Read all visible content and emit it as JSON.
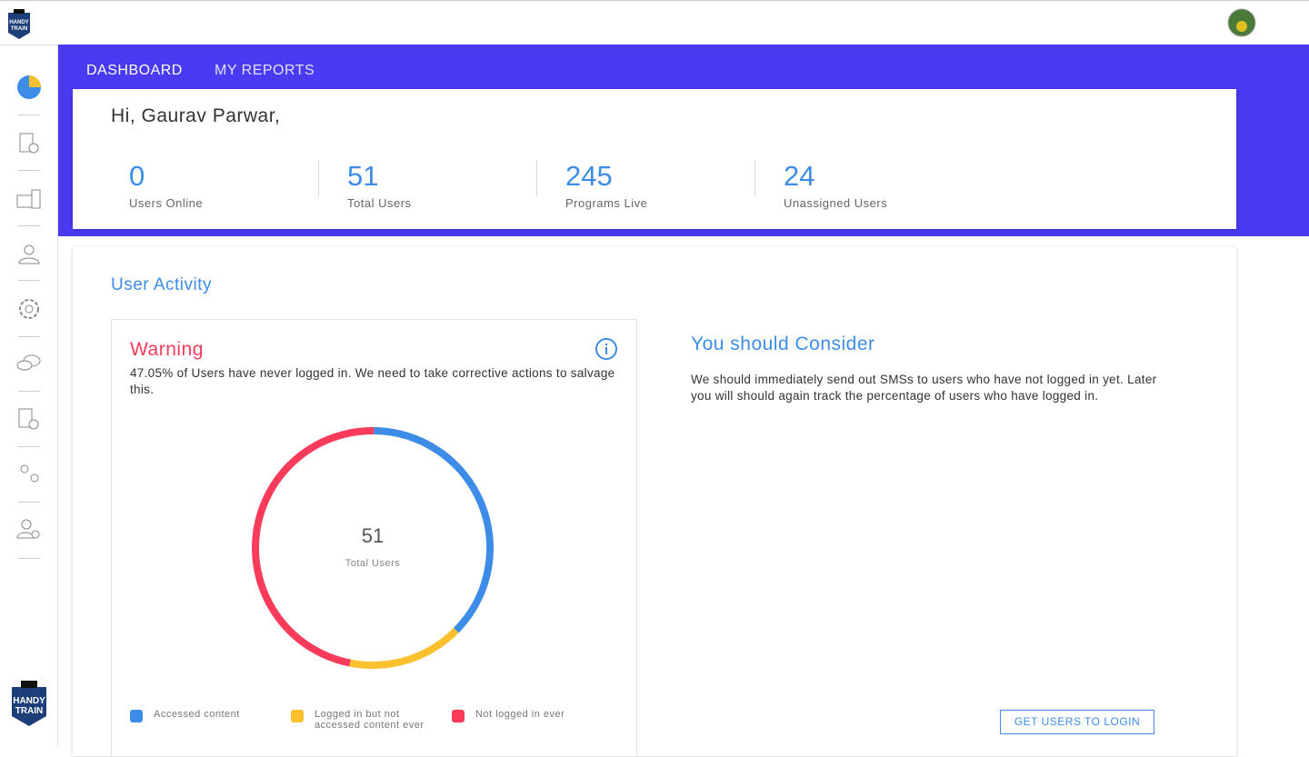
{
  "nav": {
    "items": [
      "DASHBOARD",
      "MY REPORTS"
    ]
  },
  "greeting": "Hi, Gaurav Parwar,",
  "stats": [
    {
      "value": "0",
      "label": "Users Online"
    },
    {
      "value": "51",
      "label": "Total Users"
    },
    {
      "value": "245",
      "label": "Programs Live"
    },
    {
      "value": "24",
      "label": "Unassigned Users"
    }
  ],
  "activity": {
    "title": "User Activity",
    "warning_title": "Warning",
    "warning_text": "47.05% of Users have never logged in. We need to take corrective actions to salvage this.",
    "consider_title": "You should Consider",
    "consider_text": "We should immediately send out SMSs to users who have not logged in yet. Later you will should again track the percentage of users who have logged in.",
    "button": "GET USERS TO LOGIN"
  },
  "chart_data": {
    "type": "donut",
    "categories": [
      "Accessed content",
      "Logged in but not accessed content ever",
      "Not logged in ever"
    ],
    "values": [
      19,
      8,
      24
    ],
    "colors": [
      "#3d8de8",
      "#fbc02d",
      "#fb3b5b"
    ],
    "center_value": "51",
    "center_label": "Total Users"
  }
}
